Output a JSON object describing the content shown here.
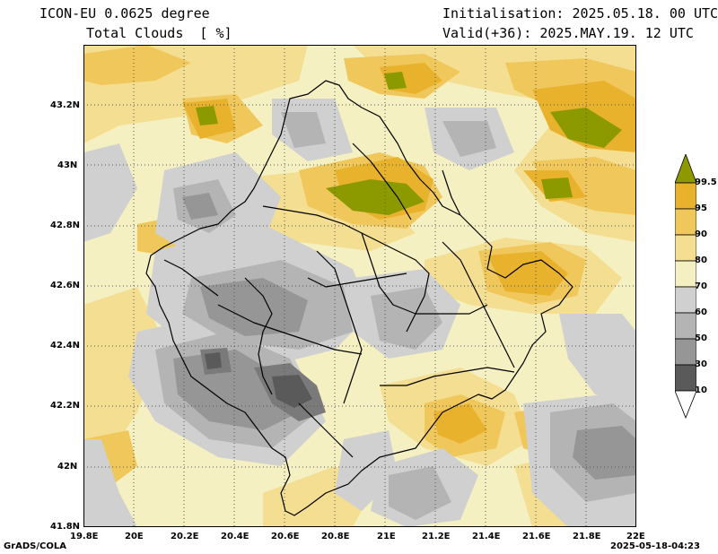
{
  "header": {
    "model": "ICON-EU 0.0625 degree",
    "variable": "Total Clouds  [ %]",
    "init": "Initialisation: 2025.05.18. 00 UTC",
    "valid": "Valid(+36): 2025.MAY.19. 12 UTC"
  },
  "axes": {
    "lat_ticks": [
      "43.2N",
      "43N",
      "42.8N",
      "42.6N",
      "42.4N",
      "42.2N",
      "42N",
      "41.8N"
    ],
    "lon_ticks": [
      "19.8E",
      "20E",
      "20.2E",
      "20.4E",
      "20.6E",
      "20.8E",
      "21E",
      "21.2E",
      "21.4E",
      "21.6E",
      "21.8E",
      "22E"
    ],
    "lat_range": [
      41.8,
      43.4
    ],
    "lon_range": [
      19.8,
      22.0
    ]
  },
  "colorbar": {
    "levels": [
      "99.5",
      "95",
      "90",
      "80",
      "70",
      "60",
      "50",
      "30",
      "10"
    ],
    "colors": {
      "olive": "#8c9a00",
      "orange_dark": "#e8b22c",
      "orange": "#f0c75a",
      "yellow_light": "#f3de92",
      "cream": "#f4f0c2",
      "grey_light": "#d0d0d0",
      "grey_mid": "#b4b4b4",
      "grey_dark": "#969696",
      "grey_darker": "#7a7a7a",
      "grey_darkest": "#5a5a5a",
      "white": "#ffffff"
    }
  },
  "footer": {
    "left": "GrADS/COLA",
    "right": "2025-05-18-04:23"
  }
}
